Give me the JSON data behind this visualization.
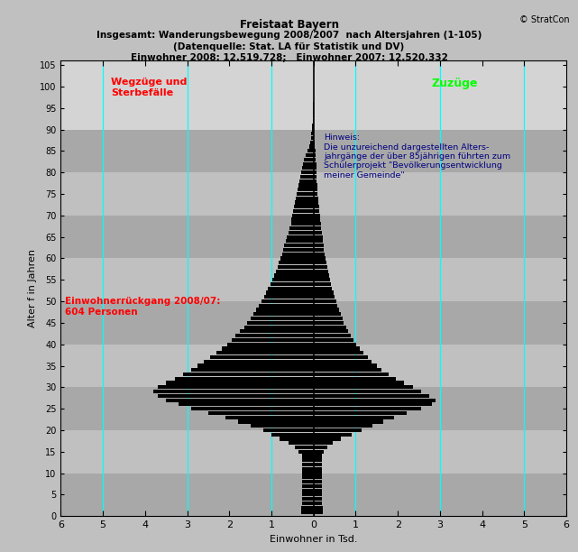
{
  "title_lines": [
    "Freistaat Bayern",
    "Insgesamt: Wanderungsbewegung 2008/2007  nach Altersjahren (1-105)",
    "(Datenquelle: Stat. LA für Statistik und DV)",
    "Einwohner 2008: 12.519.728;   Einwohner 2007: 12.520.332"
  ],
  "copyright": "© StratCon",
  "xlabel": "Einwohner in Tsd.",
  "ylabel": "Alter f in Jahren",
  "xlim": [
    -6,
    6
  ],
  "ylim": [
    0,
    106
  ],
  "yticks": [
    0,
    5,
    10,
    15,
    20,
    25,
    30,
    35,
    40,
    45,
    50,
    55,
    60,
    65,
    70,
    75,
    80,
    85,
    90,
    95,
    100,
    105
  ],
  "xticks": [
    -6,
    -5,
    -4,
    -3,
    -2,
    -1,
    0,
    1,
    2,
    3,
    4,
    5,
    6
  ],
  "xtick_labels": [
    "6",
    "5",
    "4",
    "3",
    "2",
    "1",
    "0",
    "1",
    "2",
    "3",
    "4",
    "5",
    "6"
  ],
  "cyan_vlines": [
    -5,
    -3,
    -1,
    1,
    3,
    5
  ],
  "label_wegzuge": "Wegzüge und\nSterbefälle",
  "label_zuzuge": "Zuzüge",
  "annotation": "Hinweis:\nDie unzureichend dargestellten Alters-\njahngänge der über 85jährigen führten zum\nSchülerprojekt \"Bevölkerungsentwicklung\nmeiner Gemeinde\"",
  "label_rueckgang": "Einwohnerrückgang 2008/07:\n604 Personen",
  "bg_bands": [
    {
      "ymin": 0,
      "ymax": 10,
      "color": "#a8a8a8"
    },
    {
      "ymin": 10,
      "ymax": 20,
      "color": "#c0c0c0"
    },
    {
      "ymin": 20,
      "ymax": 30,
      "color": "#a8a8a8"
    },
    {
      "ymin": 30,
      "ymax": 40,
      "color": "#c0c0c0"
    },
    {
      "ymin": 40,
      "ymax": 50,
      "color": "#a8a8a8"
    },
    {
      "ymin": 50,
      "ymax": 60,
      "color": "#c0c0c0"
    },
    {
      "ymin": 60,
      "ymax": 70,
      "color": "#a8a8a8"
    },
    {
      "ymin": 70,
      "ymax": 80,
      "color": "#c0c0c0"
    },
    {
      "ymin": 80,
      "ymax": 90,
      "color": "#a8a8a8"
    },
    {
      "ymin": 90,
      "ymax": 106,
      "color": "#d4d4d4"
    }
  ],
  "ages": [
    1,
    2,
    3,
    4,
    5,
    6,
    7,
    8,
    9,
    10,
    11,
    12,
    13,
    14,
    15,
    16,
    17,
    18,
    19,
    20,
    21,
    22,
    23,
    24,
    25,
    26,
    27,
    28,
    29,
    30,
    31,
    32,
    33,
    34,
    35,
    36,
    37,
    38,
    39,
    40,
    41,
    42,
    43,
    44,
    45,
    46,
    47,
    48,
    49,
    50,
    51,
    52,
    53,
    54,
    55,
    56,
    57,
    58,
    59,
    60,
    61,
    62,
    63,
    64,
    65,
    66,
    67,
    68,
    69,
    70,
    71,
    72,
    73,
    74,
    75,
    76,
    77,
    78,
    79,
    80,
    81,
    82,
    83,
    84,
    85,
    86,
    87,
    88,
    89,
    90,
    91,
    92,
    93,
    94,
    95,
    96,
    97,
    98,
    99,
    100,
    101,
    102,
    103,
    104,
    105
  ],
  "left_vals": [
    -0.3,
    -0.3,
    -0.28,
    -0.28,
    -0.28,
    -0.28,
    -0.28,
    -0.28,
    -0.28,
    -0.28,
    -0.28,
    -0.28,
    -0.28,
    -0.28,
    -0.35,
    -0.45,
    -0.6,
    -0.8,
    -1.0,
    -1.2,
    -1.5,
    -1.8,
    -2.1,
    -2.5,
    -2.9,
    -3.2,
    -3.5,
    -3.7,
    -3.8,
    -3.7,
    -3.5,
    -3.3,
    -3.1,
    -2.9,
    -2.75,
    -2.6,
    -2.45,
    -2.3,
    -2.18,
    -2.05,
    -1.95,
    -1.85,
    -1.75,
    -1.65,
    -1.58,
    -1.5,
    -1.43,
    -1.37,
    -1.3,
    -1.24,
    -1.18,
    -1.13,
    -1.08,
    -1.03,
    -0.98,
    -0.94,
    -0.9,
    -0.86,
    -0.82,
    -0.78,
    -0.75,
    -0.72,
    -0.69,
    -0.66,
    -0.63,
    -0.6,
    -0.57,
    -0.54,
    -0.52,
    -0.5,
    -0.48,
    -0.46,
    -0.44,
    -0.42,
    -0.4,
    -0.38,
    -0.36,
    -0.34,
    -0.32,
    -0.3,
    -0.28,
    -0.25,
    -0.22,
    -0.18,
    -0.14,
    -0.1,
    -0.08,
    -0.06,
    -0.05,
    -0.04,
    -0.03,
    -0.02,
    -0.015,
    -0.01,
    -0.008,
    -0.006,
    -0.004,
    -0.003,
    -0.002,
    -0.001,
    -0.001,
    -0.001,
    -0.001,
    -0.001,
    -0.001
  ],
  "right_vals": [
    0.22,
    0.22,
    0.2,
    0.2,
    0.2,
    0.2,
    0.2,
    0.2,
    0.2,
    0.2,
    0.2,
    0.2,
    0.2,
    0.2,
    0.25,
    0.32,
    0.45,
    0.65,
    0.9,
    1.15,
    1.4,
    1.65,
    1.9,
    2.2,
    2.55,
    2.8,
    2.9,
    2.75,
    2.55,
    2.35,
    2.15,
    1.95,
    1.78,
    1.62,
    1.5,
    1.38,
    1.28,
    1.18,
    1.1,
    1.02,
    0.95,
    0.88,
    0.82,
    0.77,
    0.72,
    0.68,
    0.64,
    0.6,
    0.57,
    0.53,
    0.5,
    0.47,
    0.44,
    0.41,
    0.39,
    0.37,
    0.35,
    0.33,
    0.31,
    0.29,
    0.27,
    0.25,
    0.24,
    0.22,
    0.21,
    0.19,
    0.18,
    0.17,
    0.16,
    0.15,
    0.14,
    0.13,
    0.12,
    0.11,
    0.1,
    0.09,
    0.085,
    0.08,
    0.075,
    0.07,
    0.065,
    0.06,
    0.055,
    0.05,
    0.04,
    0.03,
    0.022,
    0.016,
    0.012,
    0.009,
    0.006,
    0.005,
    0.004,
    0.003,
    0.002,
    0.002,
    0.001,
    0.001,
    0.001,
    0.001,
    0.001,
    0.001,
    0.001,
    0.001,
    0.001
  ],
  "bar_color": "#000000",
  "fig_bg_color": "#c0c0c0",
  "outer_bg_color": "#c0c0c0"
}
